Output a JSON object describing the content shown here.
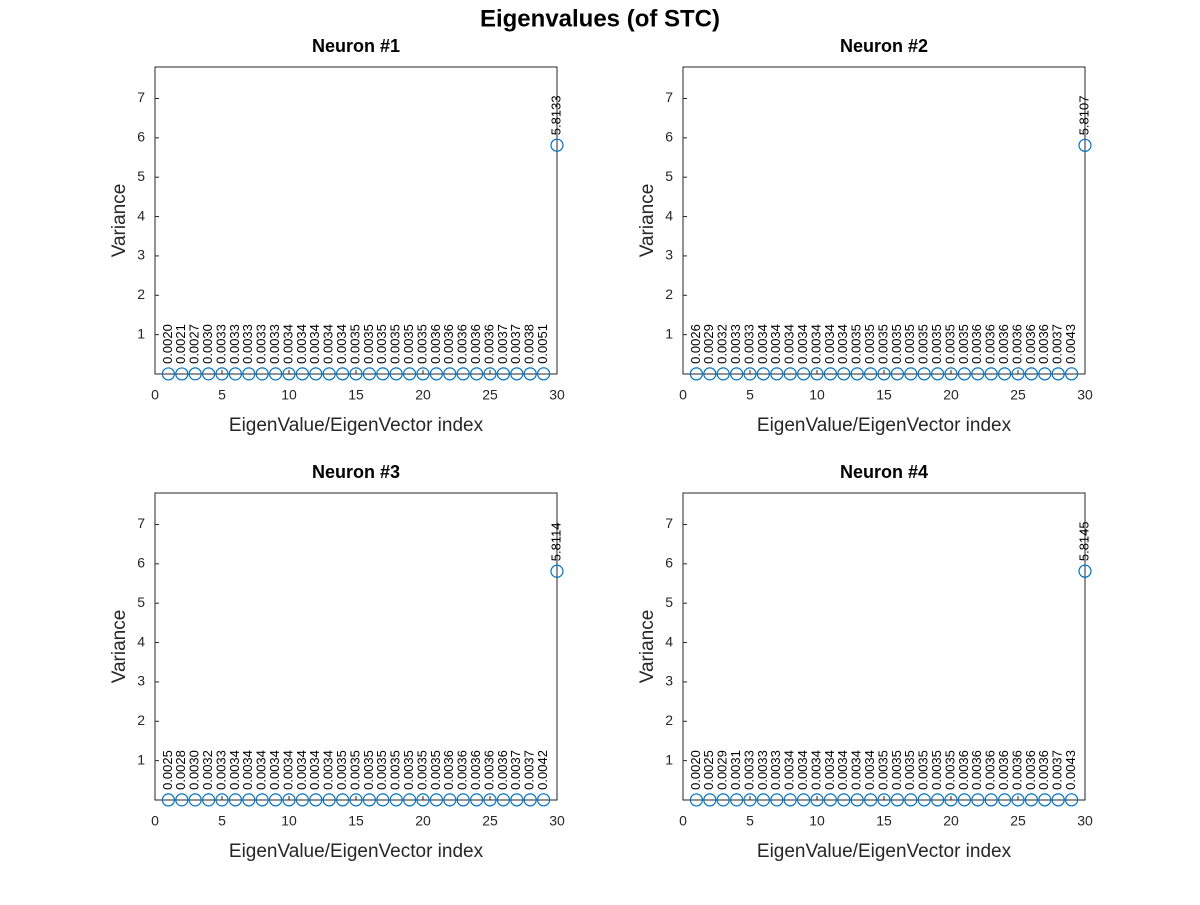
{
  "title": "Eigenvalues (of STC)",
  "chart_data": [
    {
      "type": "scatter",
      "title": "Neuron #1",
      "xlabel": "EigenValue/EigenVector index",
      "ylabel": "Variance",
      "color": "#0072bd",
      "x": [
        1,
        2,
        3,
        4,
        5,
        6,
        7,
        8,
        9,
        10,
        11,
        12,
        13,
        14,
        15,
        16,
        17,
        18,
        19,
        20,
        21,
        22,
        23,
        24,
        25,
        26,
        27,
        28,
        29,
        30
      ],
      "values": [
        0.002,
        0.0021,
        0.0027,
        0.003,
        0.0033,
        0.0033,
        0.0033,
        0.0033,
        0.0033,
        0.0034,
        0.0034,
        0.0034,
        0.0034,
        0.0034,
        0.0035,
        0.0035,
        0.0035,
        0.0035,
        0.0035,
        0.0035,
        0.0036,
        0.0036,
        0.0036,
        0.0036,
        0.0036,
        0.0037,
        0.0037,
        0.0038,
        0.0051,
        5.8133
      ],
      "value_labels": [
        "0.0020",
        "0.0021",
        "0.0027",
        "0.0030",
        "0.0033",
        "0.0033",
        "0.0033",
        "0.0033",
        "0.0033",
        "0.0034",
        "0.0034",
        "0.0034",
        "0.0034",
        "0.0034",
        "0.0035",
        "0.0035",
        "0.0035",
        "0.0035",
        "0.0035",
        "0.0035",
        "0.0036",
        "0.0036",
        "0.0036",
        "0.0036",
        "0.0036",
        "0.0037",
        "0.0037",
        "0.0038",
        "0.0051",
        "5.8133"
      ],
      "xlim": [
        0,
        30
      ],
      "xticks": [
        0,
        5,
        10,
        15,
        20,
        25,
        30
      ],
      "ylim": [
        0,
        7.8
      ],
      "yticks": [
        1,
        2,
        3,
        4,
        5,
        6,
        7
      ]
    },
    {
      "type": "scatter",
      "title": "Neuron #2",
      "xlabel": "EigenValue/EigenVector index",
      "ylabel": "Variance",
      "color": "#0072bd",
      "x": [
        1,
        2,
        3,
        4,
        5,
        6,
        7,
        8,
        9,
        10,
        11,
        12,
        13,
        14,
        15,
        16,
        17,
        18,
        19,
        20,
        21,
        22,
        23,
        24,
        25,
        26,
        27,
        28,
        29,
        30
      ],
      "values": [
        0.0026,
        0.0029,
        0.0032,
        0.0033,
        0.0033,
        0.0034,
        0.0034,
        0.0034,
        0.0034,
        0.0034,
        0.0034,
        0.0034,
        0.0035,
        0.0035,
        0.0035,
        0.0035,
        0.0035,
        0.0035,
        0.0035,
        0.0035,
        0.0035,
        0.0036,
        0.0036,
        0.0036,
        0.0036,
        0.0036,
        0.0036,
        0.0037,
        0.0043,
        5.8107
      ],
      "value_labels": [
        "0.0026",
        "0.0029",
        "0.0032",
        "0.0033",
        "0.0033",
        "0.0034",
        "0.0034",
        "0.0034",
        "0.0034",
        "0.0034",
        "0.0034",
        "0.0034",
        "0.0035",
        "0.0035",
        "0.0035",
        "0.0035",
        "0.0035",
        "0.0035",
        "0.0035",
        "0.0035",
        "0.0035",
        "0.0036",
        "0.0036",
        "0.0036",
        "0.0036",
        "0.0036",
        "0.0036",
        "0.0037",
        "0.0043",
        "5.8107"
      ],
      "xlim": [
        0,
        30
      ],
      "xticks": [
        0,
        5,
        10,
        15,
        20,
        25,
        30
      ],
      "ylim": [
        0,
        7.8
      ],
      "yticks": [
        1,
        2,
        3,
        4,
        5,
        6,
        7
      ]
    },
    {
      "type": "scatter",
      "title": "Neuron #3",
      "xlabel": "EigenValue/EigenVector index",
      "ylabel": "Variance",
      "color": "#0072bd",
      "x": [
        1,
        2,
        3,
        4,
        5,
        6,
        7,
        8,
        9,
        10,
        11,
        12,
        13,
        14,
        15,
        16,
        17,
        18,
        19,
        20,
        21,
        22,
        23,
        24,
        25,
        26,
        27,
        28,
        29,
        30
      ],
      "values": [
        0.0025,
        0.0028,
        0.003,
        0.0032,
        0.0033,
        0.0034,
        0.0034,
        0.0034,
        0.0034,
        0.0034,
        0.0034,
        0.0034,
        0.0034,
        0.0035,
        0.0035,
        0.0035,
        0.0035,
        0.0035,
        0.0035,
        0.0035,
        0.0035,
        0.0036,
        0.0036,
        0.0036,
        0.0036,
        0.0036,
        0.0037,
        0.0037,
        0.0042,
        5.8114
      ],
      "value_labels": [
        "0.0025",
        "0.0028",
        "0.0030",
        "0.0032",
        "0.0033",
        "0.0034",
        "0.0034",
        "0.0034",
        "0.0034",
        "0.0034",
        "0.0034",
        "0.0034",
        "0.0034",
        "0.0035",
        "0.0035",
        "0.0035",
        "0.0035",
        "0.0035",
        "0.0035",
        "0.0035",
        "0.0035",
        "0.0036",
        "0.0036",
        "0.0036",
        "0.0036",
        "0.0036",
        "0.0037",
        "0.0037",
        "0.0042",
        "5.8114"
      ],
      "xlim": [
        0,
        30
      ],
      "xticks": [
        0,
        5,
        10,
        15,
        20,
        25,
        30
      ],
      "ylim": [
        0,
        7.8
      ],
      "yticks": [
        1,
        2,
        3,
        4,
        5,
        6,
        7
      ]
    },
    {
      "type": "scatter",
      "title": "Neuron #4",
      "xlabel": "EigenValue/EigenVector index",
      "ylabel": "Variance",
      "color": "#0072bd",
      "x": [
        1,
        2,
        3,
        4,
        5,
        6,
        7,
        8,
        9,
        10,
        11,
        12,
        13,
        14,
        15,
        16,
        17,
        18,
        19,
        20,
        21,
        22,
        23,
        24,
        25,
        26,
        27,
        28,
        29,
        30
      ],
      "values": [
        0.002,
        0.0025,
        0.0029,
        0.0031,
        0.0033,
        0.0033,
        0.0033,
        0.0034,
        0.0034,
        0.0034,
        0.0034,
        0.0034,
        0.0034,
        0.0034,
        0.0035,
        0.0035,
        0.0035,
        0.0035,
        0.0035,
        0.0035,
        0.0036,
        0.0036,
        0.0036,
        0.0036,
        0.0036,
        0.0036,
        0.0036,
        0.0037,
        0.0043,
        5.8145
      ],
      "value_labels": [
        "0.0020",
        "0.0025",
        "0.0029",
        "0.0031",
        "0.0033",
        "0.0033",
        "0.0033",
        "0.0034",
        "0.0034",
        "0.0034",
        "0.0034",
        "0.0034",
        "0.0034",
        "0.0034",
        "0.0035",
        "0.0035",
        "0.0035",
        "0.0035",
        "0.0035",
        "0.0035",
        "0.0036",
        "0.0036",
        "0.0036",
        "0.0036",
        "0.0036",
        "0.0036",
        "0.0036",
        "0.0037",
        "0.0043",
        "5.8145"
      ],
      "xlim": [
        0,
        30
      ],
      "xticks": [
        0,
        5,
        10,
        15,
        20,
        25,
        30
      ],
      "ylim": [
        0,
        7.8
      ],
      "yticks": [
        1,
        2,
        3,
        4,
        5,
        6,
        7
      ]
    }
  ]
}
